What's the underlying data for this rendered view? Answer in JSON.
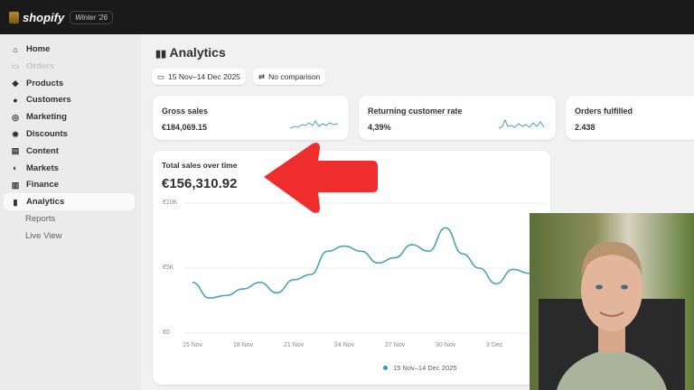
{
  "topbar": {
    "brand": "shopify",
    "release_badge": "Winter '26"
  },
  "sidebar": {
    "items": [
      {
        "label": "Home",
        "icon": "home-icon"
      },
      {
        "label": "Orders",
        "icon": "inbox-icon"
      },
      {
        "label": "Products",
        "icon": "tag-icon"
      },
      {
        "label": "Customers",
        "icon": "person-icon"
      },
      {
        "label": "Marketing",
        "icon": "target-icon"
      },
      {
        "label": "Discounts",
        "icon": "discount-icon"
      },
      {
        "label": "Content",
        "icon": "content-icon"
      },
      {
        "label": "Markets",
        "icon": "globe-icon"
      },
      {
        "label": "Finance",
        "icon": "bank-icon"
      },
      {
        "label": "Analytics",
        "icon": "bar-chart-icon",
        "active": true
      },
      {
        "label": "Reports"
      },
      {
        "label": "Live View"
      }
    ]
  },
  "page": {
    "title": "Analytics",
    "date_range": "15 Nov–14 Dec 2025",
    "comparison": "No comparison"
  },
  "kpis": [
    {
      "label": "Gross sales",
      "value": "€184,069.15"
    },
    {
      "label": "Returning customer rate",
      "value": "4,39%"
    },
    {
      "label": "Orders fulfilled",
      "value": "2.438"
    }
  ],
  "chart_data": {
    "type": "line",
    "title": "Total sales over time",
    "total": "€156,310.92",
    "ylim": [
      0,
      10000
    ],
    "yticks": [
      "€0",
      "€5K",
      "€10K"
    ],
    "xticks": [
      "15 Nov",
      "18 Nov",
      "21 Nov",
      "24 Nov",
      "27 Nov",
      "30 Nov",
      "3 Dec"
    ],
    "x": [
      "15 Nov",
      "16 Nov",
      "17 Nov",
      "18 Nov",
      "19 Nov",
      "20 Nov",
      "21 Nov",
      "22 Nov",
      "23 Nov",
      "24 Nov",
      "25 Nov",
      "26 Nov",
      "27 Nov",
      "28 Nov",
      "29 Nov",
      "30 Nov",
      "1 Dec",
      "2 Dec",
      "3 Dec",
      "4 Dec",
      "5 Dec"
    ],
    "series": [
      {
        "name": "15 Nov–14 Dec 2025",
        "color": "#4aa3b8",
        "values": [
          3900,
          2700,
          2900,
          3400,
          3900,
          3100,
          4100,
          4500,
          6300,
          6700,
          6300,
          5400,
          5800,
          6800,
          6300,
          8100,
          6100,
          5000,
          3800,
          4900,
          4600
        ]
      }
    ],
    "grid": true,
    "legend": "bottom"
  },
  "colors": {
    "accent_line": "#4aa3b8",
    "arrow": "#f02d2d"
  }
}
